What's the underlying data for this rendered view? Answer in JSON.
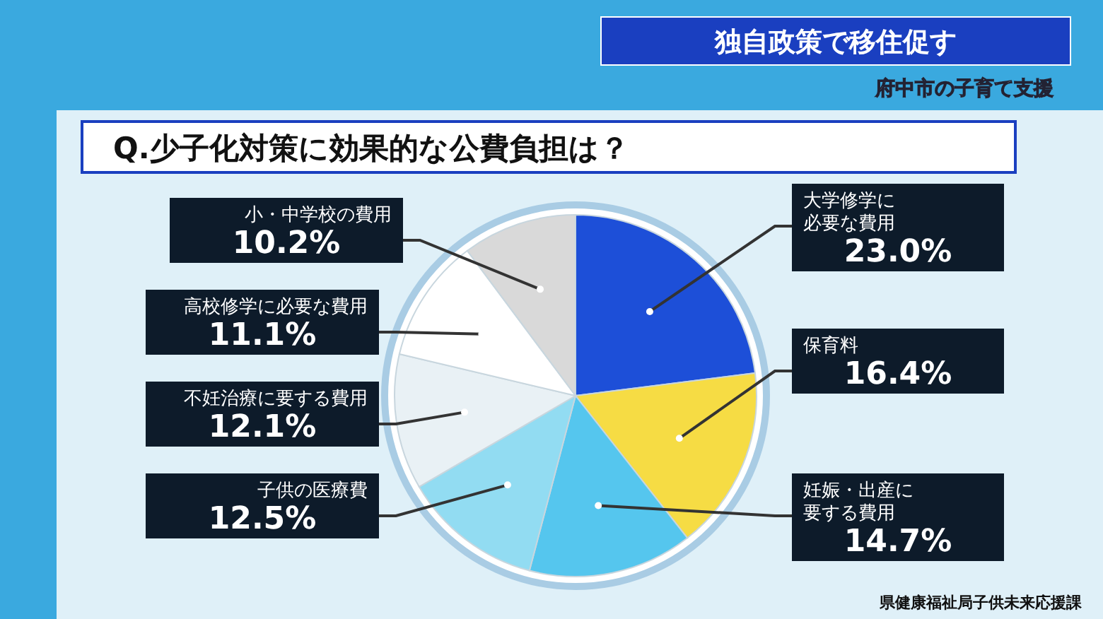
{
  "chart_data": {
    "type": "pie",
    "title": "Q.少子化対策に効果的な公費負担は？",
    "categories": [
      "大学修学に必要な費用",
      "保育料",
      "妊娠・出産に要する費用",
      "子供の医療費",
      "不妊治療に要する費用",
      "高校修学に必要な費用",
      "小・中学校の費用"
    ],
    "values": [
      23.0,
      16.4,
      14.7,
      12.5,
      12.1,
      11.1,
      10.2
    ],
    "colors": [
      "#1d4fd8",
      "#f6dc44",
      "#55c6ee",
      "#92dcf2",
      "#e9f1f5",
      "#ffffff",
      "#d9d9d9"
    ],
    "value_labels": [
      "23.0%",
      "16.4%",
      "14.7%",
      "12.5%",
      "12.1%",
      "11.1%",
      "10.2%"
    ],
    "legend": false,
    "annotations": [
      "独自政策で移住促す",
      "府中市の子育て支援",
      "県健康福祉局子供未来応援課"
    ]
  }
}
